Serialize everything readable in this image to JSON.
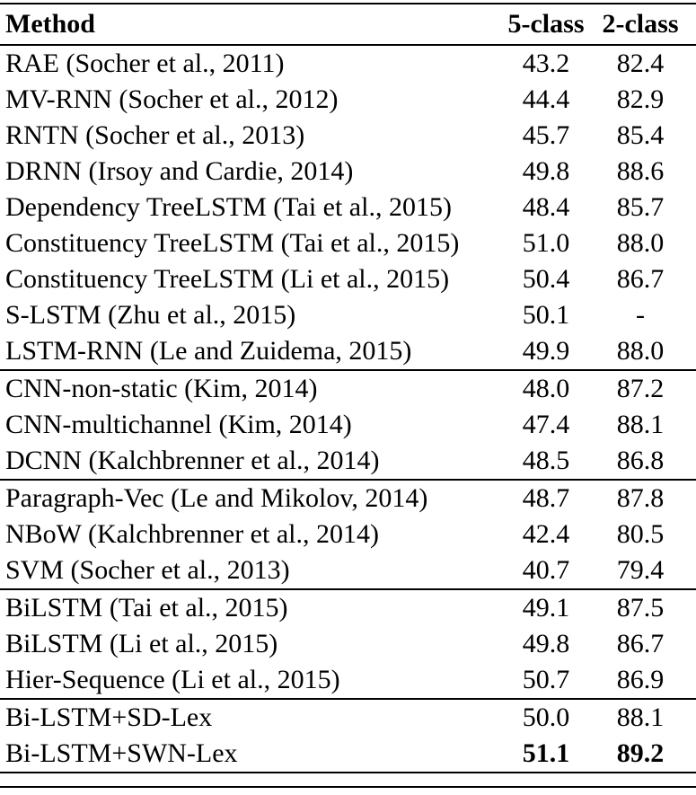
{
  "table": {
    "header": {
      "method": "Method",
      "col1": "5-class",
      "col2": "2-class"
    },
    "groups": [
      {
        "rows": [
          {
            "method": "RAE (Socher et al., 2011)",
            "c1": "43.2",
            "c2": "82.4"
          },
          {
            "method": "MV-RNN (Socher et al., 2012)",
            "c1": "44.4",
            "c2": "82.9"
          },
          {
            "method": "RNTN (Socher et al., 2013)",
            "c1": "45.7",
            "c2": "85.4"
          },
          {
            "method": "DRNN (Irsoy and Cardie, 2014)",
            "c1": "49.8",
            "c2": "88.6"
          },
          {
            "method": "Dependency TreeLSTM (Tai et al., 2015)",
            "c1": "48.4",
            "c2": "85.7"
          },
          {
            "method": "Constituency TreeLSTM (Tai et al., 2015)",
            "c1": "51.0",
            "c2": "88.0"
          },
          {
            "method": "Constituency TreeLSTM (Li et al., 2015)",
            "c1": "50.4",
            "c2": "86.7"
          },
          {
            "method": "S-LSTM (Zhu et al., 2015)",
            "c1": "50.1",
            "c2": "-"
          },
          {
            "method": "LSTM-RNN (Le and Zuidema, 2015)",
            "c1": "49.9",
            "c2": "88.0"
          }
        ]
      },
      {
        "rows": [
          {
            "method": "CNN-non-static (Kim, 2014)",
            "c1": "48.0",
            "c2": "87.2"
          },
          {
            "method": "CNN-multichannel (Kim, 2014)",
            "c1": "47.4",
            "c2": "88.1"
          },
          {
            "method": "DCNN (Kalchbrenner et al., 2014)",
            "c1": "48.5",
            "c2": "86.8"
          }
        ]
      },
      {
        "rows": [
          {
            "method": "Paragraph-Vec (Le and Mikolov, 2014)",
            "c1": "48.7",
            "c2": "87.8"
          },
          {
            "method": "NBoW (Kalchbrenner et al., 2014)",
            "c1": "42.4",
            "c2": "80.5"
          },
          {
            "method": "SVM (Socher et al., 2013)",
            "c1": "40.7",
            "c2": "79.4"
          }
        ]
      },
      {
        "rows": [
          {
            "method": "BiLSTM (Tai et al., 2015)",
            "c1": "49.1",
            "c2": "87.5"
          },
          {
            "method": "BiLSTM (Li et al., 2015)",
            "c1": "49.8",
            "c2": "86.7"
          },
          {
            "method": "Hier-Sequence (Li et al., 2015)",
            "c1": "50.7",
            "c2": "86.9"
          }
        ]
      },
      {
        "rows": [
          {
            "method": "Bi-LSTM+SD-Lex",
            "c1": "50.0",
            "c2": "88.1"
          },
          {
            "method": "Bi-LSTM+SWN-Lex",
            "c1": "51.1",
            "c2": "89.2"
          }
        ]
      }
    ]
  }
}
